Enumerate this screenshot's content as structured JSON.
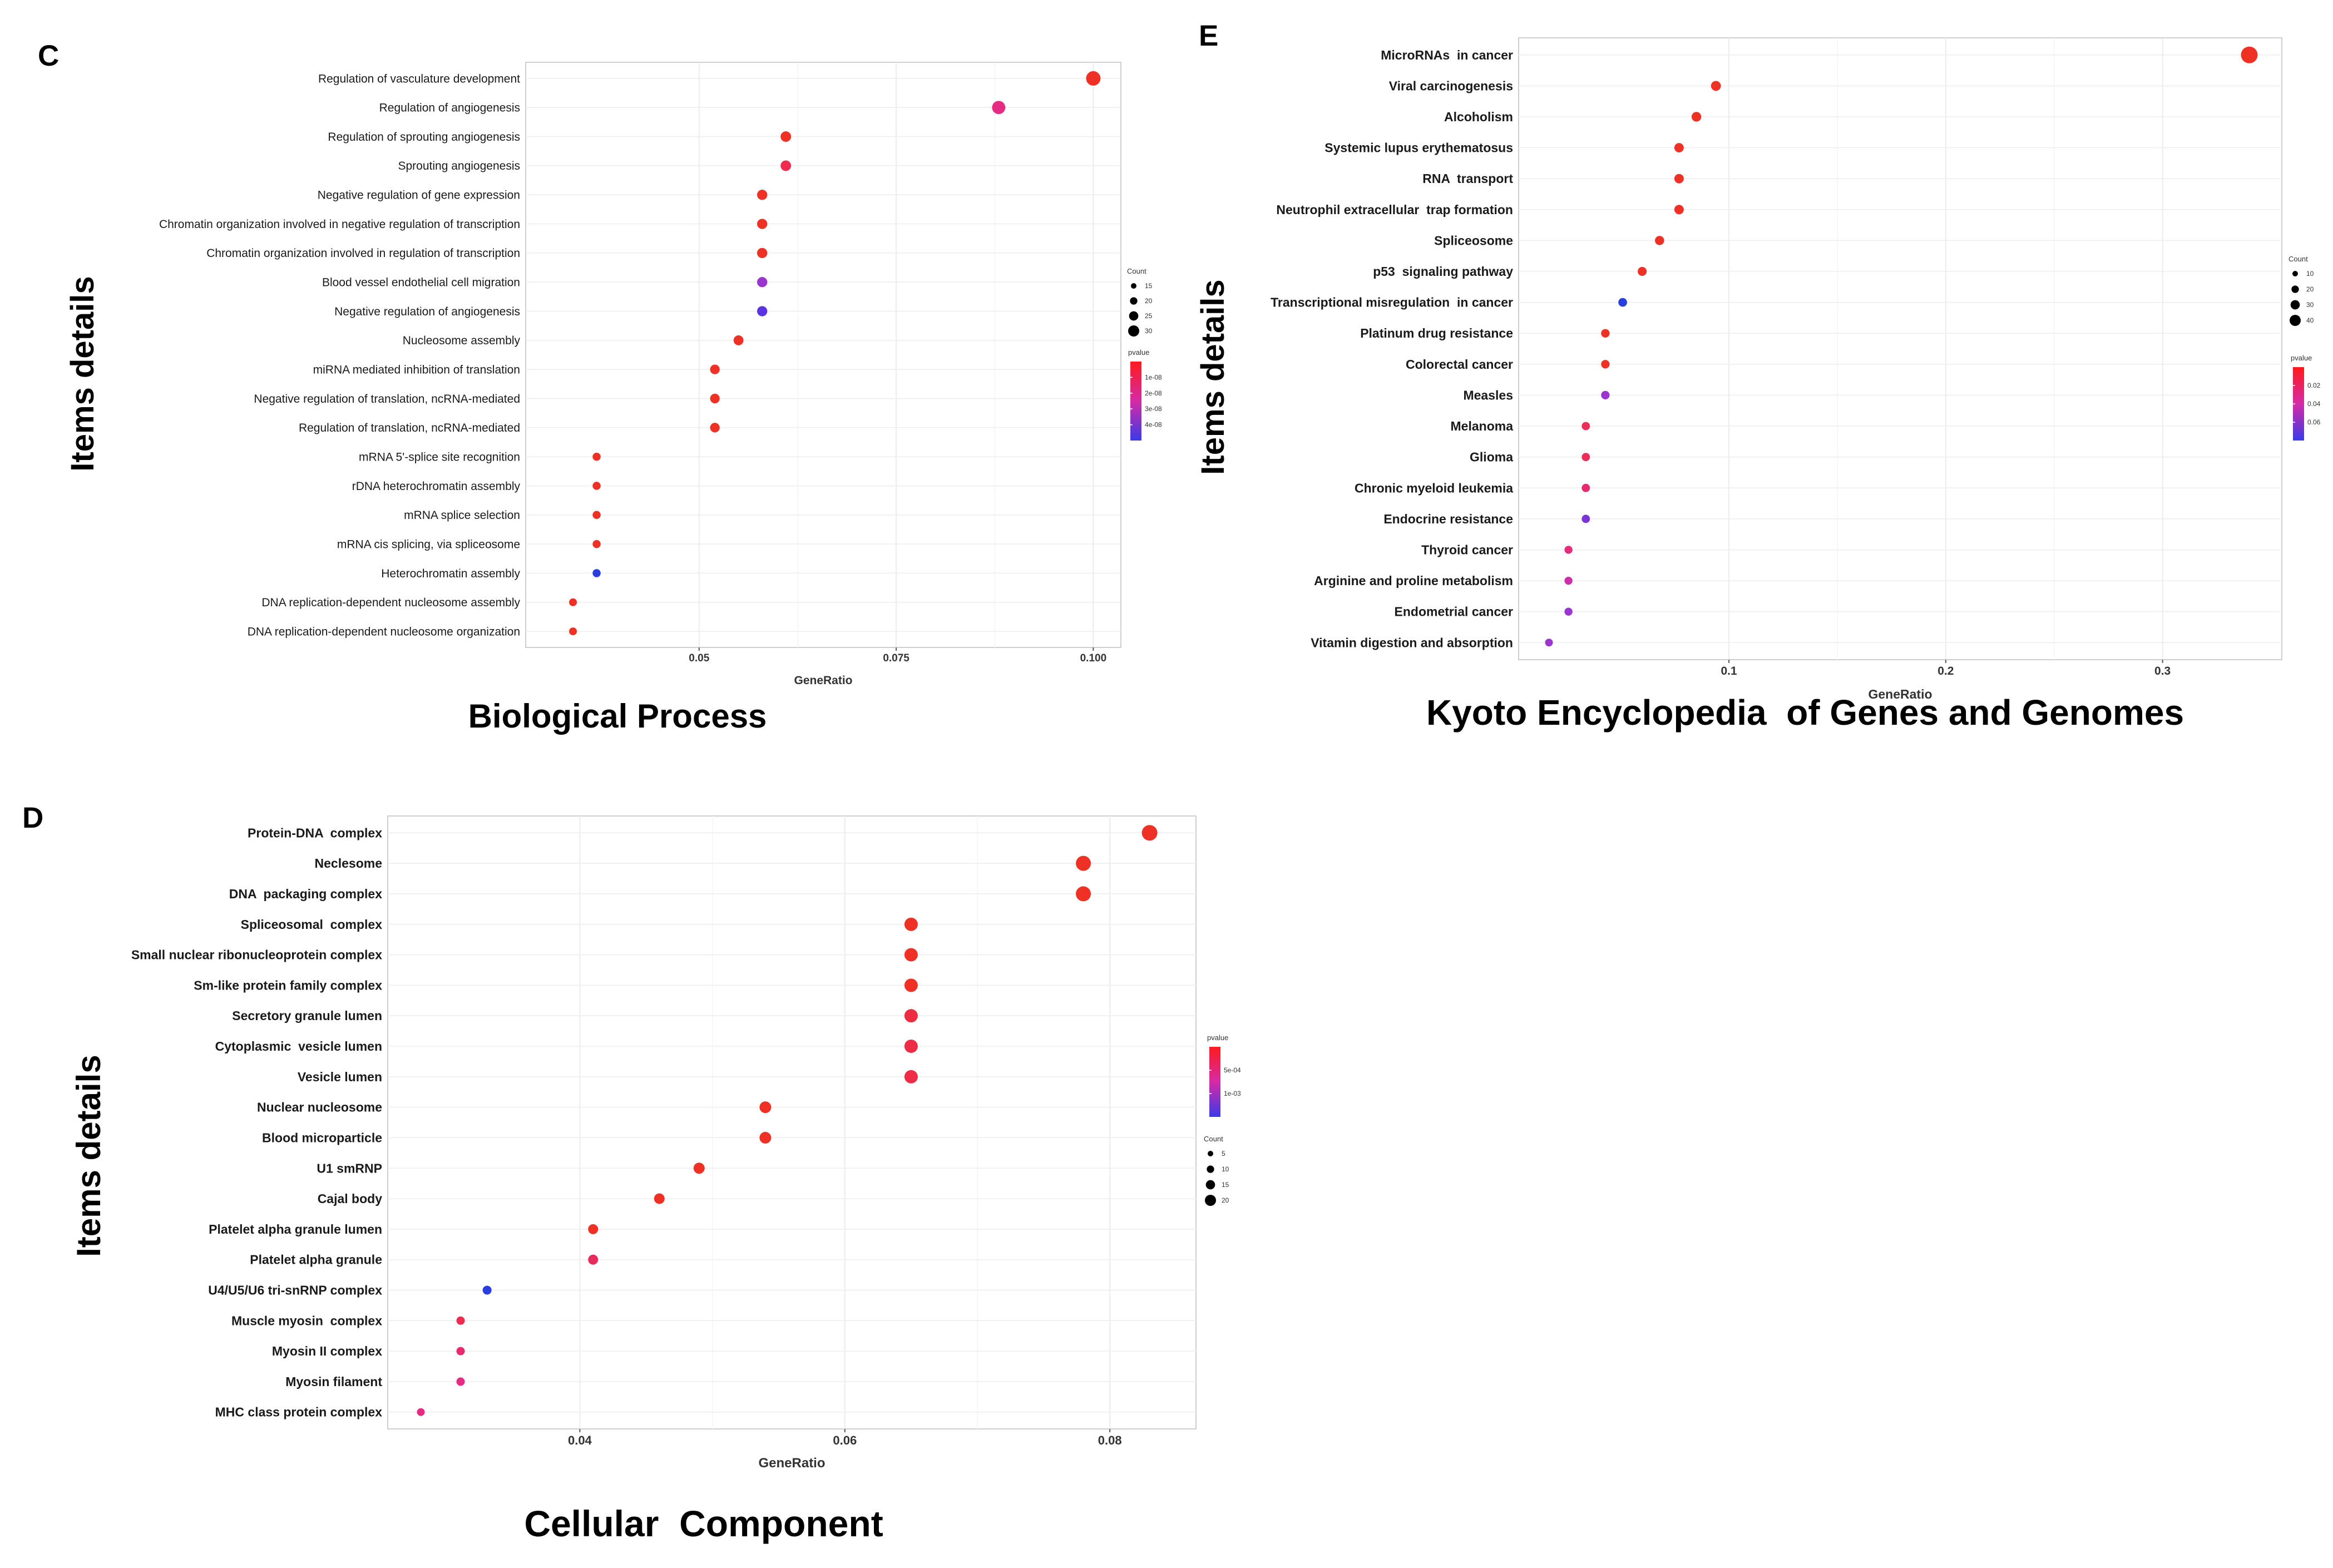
{
  "chart_data": [
    {
      "type": "scatter",
      "panel_label": "C",
      "title": "Biological Process",
      "xlabel": "GeneRatio",
      "ylabel": "Items details",
      "xlim": [
        0.028,
        0.1035
      ],
      "xticks": [
        0.05,
        0.075,
        0.1
      ],
      "xtick_labels": [
        "0.05",
        "0.075",
        "0.100"
      ],
      "grid": true,
      "legend_position": "right",
      "categories": [
        "Regulation of vasculature development",
        "Regulation of angiogenesis",
        "Regulation of sprouting angiogenesis",
        "Sprouting angiogenesis",
        "Negative regulation of gene expression",
        "Chromatin organization involved in negative regulation of transcription",
        "Chromatin organization involved in regulation of transcription",
        "Blood vessel endothelial cell migration",
        "Negative regulation of angiogenesis",
        "Nucleosome assembly",
        "miRNA mediated inhibition of translation",
        "Negative regulation of translation, ncRNA-mediated",
        "Regulation of translation, ncRNA-mediated",
        "mRNA 5'-splice site recognition",
        "rDNA heterochromatin assembly",
        "mRNA splice selection",
        "mRNA cis splicing, via spliceosome",
        "Heterochromatin assembly",
        "DNA replication-dependent nucleosome assembly",
        "DNA replication-dependent nucleosome organization"
      ],
      "gene_ratio": [
        0.1,
        0.088,
        0.061,
        0.061,
        0.058,
        0.058,
        0.058,
        0.058,
        0.058,
        0.055,
        0.052,
        0.052,
        0.052,
        0.037,
        0.037,
        0.037,
        0.037,
        0.037,
        0.034,
        0.034
      ],
      "count": [
        33,
        29,
        20,
        20,
        19,
        19,
        19,
        19,
        19,
        18,
        17,
        17,
        17,
        12,
        12,
        12,
        12,
        12,
        11,
        11
      ],
      "color": [
        "#ee3124",
        "#e62c82",
        "#ee3124",
        "#ee2c50",
        "#ee3124",
        "#ee3124",
        "#ee3124",
        "#9b35d0",
        "#5a34e2",
        "#ee3124",
        "#ee3124",
        "#ee3124",
        "#ee3124",
        "#ee3124",
        "#ee3124",
        "#ee3124",
        "#ee3124",
        "#2a3ee0",
        "#ee3124",
        "#ee3124"
      ],
      "size_legend": {
        "title": "Count",
        "labels": [
          "15",
          "20",
          "25",
          "30"
        ],
        "values": [
          15,
          20,
          25,
          30
        ]
      },
      "color_legend": {
        "title": "pvalue",
        "labels": [
          "1e-08",
          "2e-08",
          "3e-08",
          "4e-08"
        ],
        "low_color": "#ff1a1a",
        "high_color": "#3a3ae8"
      }
    },
    {
      "type": "scatter",
      "panel_label": "E",
      "title": "Kyoto Encyclopedia  of Genes and Genomes",
      "xlabel": "GeneRatio",
      "ylabel": "Items details",
      "xlim": [
        0.003,
        0.355
      ],
      "xticks": [
        0.1,
        0.2,
        0.3
      ],
      "xtick_labels": [
        "0.1",
        "0.2",
        "0.3"
      ],
      "grid": true,
      "legend_position": "right",
      "categories": [
        "MicroRNAs  in cancer",
        "Viral carcinogenesis",
        "Alcoholism",
        "Systemic lupus erythematosus",
        "RNA  transport",
        "Neutrophil extracellular  trap formation",
        "Spliceosome",
        "p53  signaling pathway",
        "Transcriptional misregulation  in cancer",
        "Platinum drug resistance",
        "Colorectal cancer",
        "Measles",
        "Melanoma",
        "Glioma",
        "Chronic myeloid leukemia",
        "Endocrine resistance",
        "Thyroid cancer",
        "Arginine and proline metabolism",
        "Endometrial cancer",
        "Vitamin digestion and absorption"
      ],
      "gene_ratio": [
        0.34,
        0.094,
        0.085,
        0.077,
        0.077,
        0.077,
        0.068,
        0.06,
        0.051,
        0.043,
        0.043,
        0.043,
        0.034,
        0.034,
        0.034,
        0.034,
        0.026,
        0.026,
        0.026,
        0.017
      ],
      "count": [
        40,
        11,
        10,
        9,
        9,
        9,
        8,
        7,
        6,
        5,
        5,
        5,
        4,
        4,
        4,
        4,
        3,
        3,
        3,
        2
      ],
      "color": [
        "#ee3124",
        "#ee3124",
        "#ee3124",
        "#ee3124",
        "#ee3124",
        "#ee3124",
        "#ee3124",
        "#ee3124",
        "#2a3ee0",
        "#ee3124",
        "#ee3124",
        "#9b35d0",
        "#ee2c5a",
        "#ee2c5a",
        "#e62c6e",
        "#7a34d8",
        "#e62c7a",
        "#cc30a8",
        "#9b35d0",
        "#9b35d0"
      ],
      "size_legend": {
        "title": "Count",
        "labels": [
          "10",
          "20",
          "30",
          "40"
        ],
        "values": [
          10,
          20,
          30,
          40
        ]
      },
      "color_legend": {
        "title": "pvalue",
        "labels": [
          "0.02",
          "0.04",
          "0.06"
        ],
        "low_color": "#ff1a1a",
        "high_color": "#3a3ae8"
      }
    },
    {
      "type": "scatter",
      "panel_label": "D",
      "title": "Cellular  Component",
      "xlabel": "GeneRatio",
      "ylabel": "Items details",
      "xlim": [
        0.0255,
        0.0865
      ],
      "xticks": [
        0.04,
        0.06,
        0.08
      ],
      "xtick_labels": [
        "0.04",
        "0.06",
        "0.08"
      ],
      "grid": true,
      "legend_position": "right",
      "categories": [
        "Protein-DNA  complex",
        "Neclesome",
        "DNA  packaging complex",
        "Spliceosomal  complex",
        "Small nuclear ribonucleoprotein complex",
        "Sm-like protein family complex",
        "Secretory granule lumen",
        "Cytoplasmic  vesicle lumen",
        "Vesicle lumen",
        "Nuclear nucleosome",
        "Blood microparticle",
        "U1 smRNP",
        "Cajal body",
        "Platelet alpha granule lumen",
        "Platelet alpha granule",
        "U4/U5/U6 tri-snRNP complex",
        "Muscle myosin  complex",
        "Myosin II complex",
        "Myosin filament",
        "MHC class protein complex"
      ],
      "gene_ratio": [
        0.083,
        0.078,
        0.078,
        0.065,
        0.065,
        0.065,
        0.065,
        0.065,
        0.065,
        0.054,
        0.054,
        0.049,
        0.046,
        0.041,
        0.041,
        0.033,
        0.031,
        0.031,
        0.031,
        0.028
      ],
      "count": [
        21,
        20,
        20,
        17,
        17,
        17,
        17,
        17,
        17,
        14,
        14,
        13,
        12,
        11,
        11,
        9,
        8,
        8,
        8,
        7
      ],
      "color": [
        "#ee3124",
        "#ee3124",
        "#ee3124",
        "#ee3124",
        "#ee3124",
        "#ee3124",
        "#ee2c40",
        "#ee2c45",
        "#ee2c45",
        "#ee3124",
        "#ee3124",
        "#ee3124",
        "#ee3124",
        "#ee3124",
        "#e62c5a",
        "#2a3ee0",
        "#ee2c50",
        "#e62c6e",
        "#e62c82",
        "#e62c82"
      ],
      "size_legend": {
        "title": "Count",
        "labels": [
          "5",
          "10",
          "15",
          "20"
        ],
        "values": [
          5,
          10,
          15,
          20
        ]
      },
      "color_legend": {
        "title": "pvalue",
        "labels": [
          "5e-04",
          "1e-03"
        ],
        "low_color": "#ff1a1a",
        "high_color": "#3a3ae8"
      }
    }
  ]
}
